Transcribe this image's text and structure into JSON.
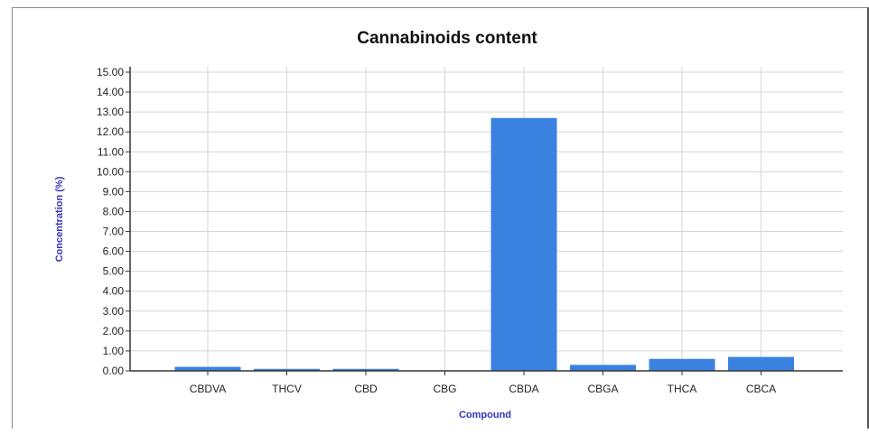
{
  "chart_data": {
    "type": "bar",
    "title": "Cannabinoids content",
    "xlabel": "Compound",
    "ylabel": "Concentration (%)",
    "categories": [
      "CBDVA",
      "THCV",
      "CBD",
      "CBG",
      "CBDA",
      "CBGA",
      "THCA",
      "CBCA"
    ],
    "values": [
      0.2,
      0.1,
      0.1,
      0.0,
      12.7,
      0.3,
      0.6,
      0.7
    ],
    "ylim": [
      0,
      15
    ],
    "yticks": [
      "0.00",
      "1.00",
      "2.00",
      "3.00",
      "4.00",
      "5.00",
      "6.00",
      "7.00",
      "8.00",
      "9.00",
      "10.00",
      "11.00",
      "12.00",
      "13.00",
      "14.00",
      "15.00"
    ],
    "grid": true,
    "bar_color": "#3b82e0",
    "axis_label_color": "#3333bb"
  }
}
